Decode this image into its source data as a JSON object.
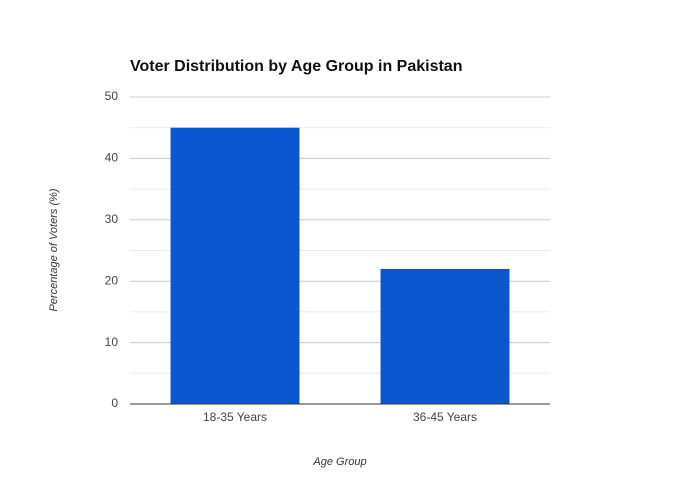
{
  "chart_data": {
    "type": "bar",
    "title": "Voter Distribution by Age Group in Pakistan",
    "x_label": "Age Group",
    "y_label": "Percentage of Voters (%)",
    "categories": [
      "18-35 Years",
      "36-45 Years"
    ],
    "values": [
      45,
      22
    ],
    "color": "#0b57d0",
    "ylim": [
      0,
      50
    ],
    "yticks": [
      0,
      10,
      20,
      30,
      40,
      50
    ],
    "minor_yticks": [
      5,
      15,
      25,
      35,
      45
    ],
    "grid": true
  }
}
